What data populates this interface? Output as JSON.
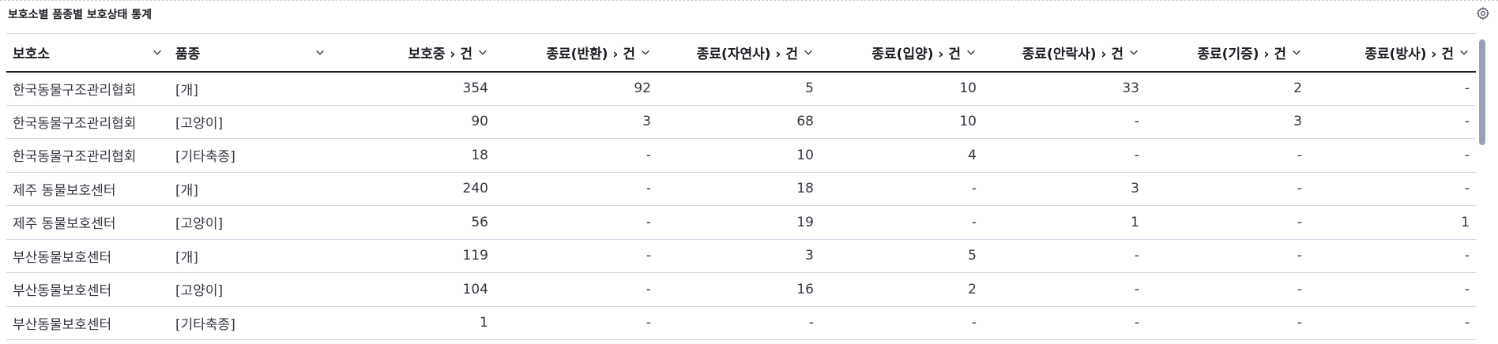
{
  "panel": {
    "title": "보호소별 품종별 보호상태 통계",
    "settings_icon": "gear-icon"
  },
  "table": {
    "columns": [
      {
        "key": "shelter",
        "label": "보호소",
        "align": "left"
      },
      {
        "key": "breed",
        "label": "품종",
        "align": "left"
      },
      {
        "key": "protecting",
        "label": "보호중 › 건",
        "align": "right"
      },
      {
        "key": "returned",
        "label": "종료(반환) › 건",
        "align": "right"
      },
      {
        "key": "natural_death",
        "label": "종료(자연사) › 건",
        "align": "right"
      },
      {
        "key": "adopted",
        "label": "종료(입양) › 건",
        "align": "right"
      },
      {
        "key": "euthanasia",
        "label": "종료(안락사) › 건",
        "align": "right"
      },
      {
        "key": "donated",
        "label": "종료(기증) › 건",
        "align": "right"
      },
      {
        "key": "released",
        "label": "종료(방사) › 건",
        "align": "right"
      }
    ],
    "rows": [
      [
        "한국동물구조관리협회",
        "[개]",
        "354",
        "92",
        "5",
        "10",
        "33",
        "2",
        "-"
      ],
      [
        "한국동물구조관리협회",
        "[고양이]",
        "90",
        "3",
        "68",
        "10",
        "-",
        "3",
        "-"
      ],
      [
        "한국동물구조관리협회",
        "[기타축종]",
        "18",
        "-",
        "10",
        "4",
        "-",
        "-",
        "-"
      ],
      [
        "제주 동물보호센터",
        "[개]",
        "240",
        "-",
        "18",
        "-",
        "3",
        "-",
        "-"
      ],
      [
        "제주 동물보호센터",
        "[고양이]",
        "56",
        "-",
        "19",
        "-",
        "1",
        "-",
        "1"
      ],
      [
        "부산동물보호센터",
        "[개]",
        "119",
        "-",
        "3",
        "5",
        "-",
        "-",
        "-"
      ],
      [
        "부산동물보호센터",
        "[고양이]",
        "104",
        "-",
        "16",
        "2",
        "-",
        "-",
        "-"
      ],
      [
        "부산동물보호센터",
        "[기타축종]",
        "1",
        "-",
        "-",
        "-",
        "-",
        "-",
        "-"
      ]
    ]
  }
}
